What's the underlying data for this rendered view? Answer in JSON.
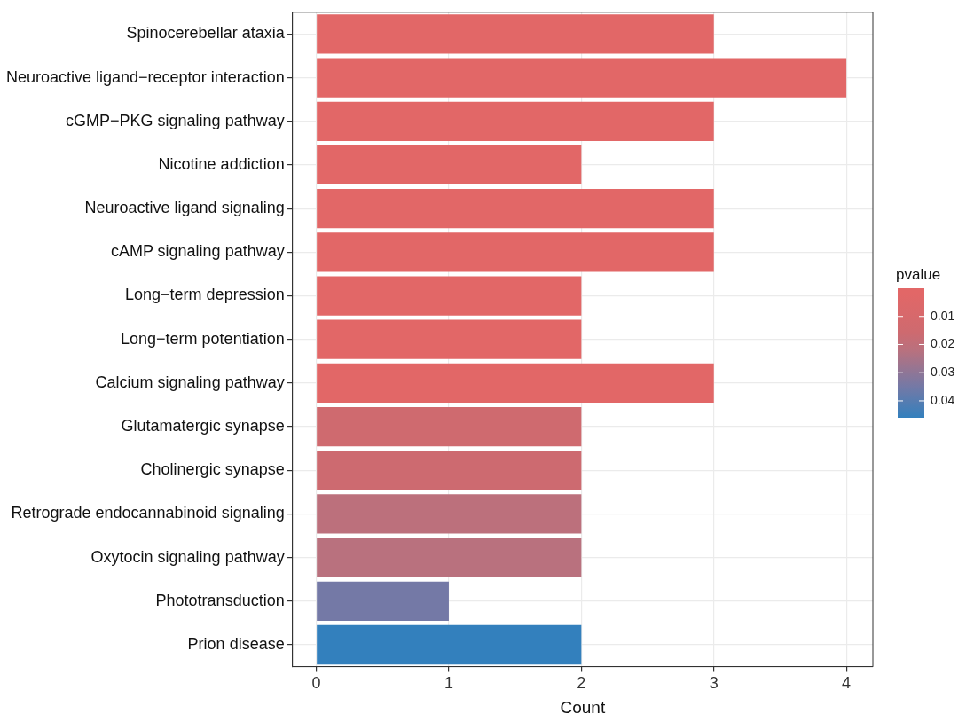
{
  "chart_data": {
    "type": "bar",
    "orientation": "horizontal",
    "xlabel": "Count",
    "clabel": "pvalue",
    "categories": [
      "Spinocerebellar ataxia",
      "Neuroactive ligand−receptor interaction",
      "cGMP−PKG signaling pathway",
      "Nicotine addiction",
      "Neuroactive ligand signaling",
      "cAMP signaling pathway",
      "Long−term depression",
      "Long−term potentiation",
      "Calcium signaling pathway",
      "Glutamatergic synapse",
      "Cholinergic synapse",
      "Retrograde endocannabinoid signaling",
      "Oxytocin signaling pathway",
      "Phototransduction",
      "Prion disease"
    ],
    "values": [
      3,
      4,
      3,
      2,
      3,
      3,
      2,
      2,
      3,
      2,
      2,
      2,
      2,
      1,
      2
    ],
    "cvalues": [
      0.002,
      0.002,
      0.002,
      0.002,
      0.002,
      0.002,
      0.002,
      0.002,
      0.002,
      0.015,
      0.016,
      0.021,
      0.022,
      0.035,
      0.046
    ],
    "colors": [
      "#e26767",
      "#e26767",
      "#e26767",
      "#e26767",
      "#e26767",
      "#e26767",
      "#e26767",
      "#e26767",
      "#e26767",
      "#cf6a6f",
      "#cd6a70",
      "#bc707c",
      "#b9717e",
      "#7479a6",
      "#3380bd"
    ],
    "xlim": [
      -0.18,
      4.2
    ],
    "xticks": [
      0,
      1,
      2,
      3,
      4
    ],
    "clim": [
      0.0,
      0.046
    ],
    "cticks": [
      0.01,
      0.02,
      0.03,
      0.04
    ],
    "grid": true,
    "legend": false
  }
}
